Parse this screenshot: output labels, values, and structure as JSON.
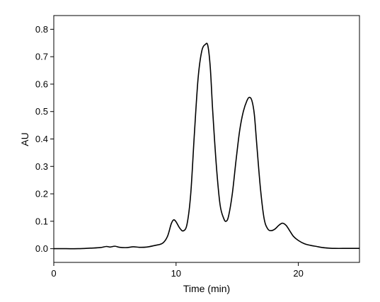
{
  "chart_data": {
    "type": "line",
    "title": "",
    "xlabel": "Time (min)",
    "ylabel": "AU",
    "xlim": [
      0,
      25
    ],
    "ylim": [
      -0.05,
      0.85
    ],
    "xticks": [
      0,
      10,
      20
    ],
    "xtick_labels": [
      "0",
      "10",
      "20"
    ],
    "yticks": [
      0.0,
      0.1,
      0.2,
      0.3,
      0.4,
      0.5,
      0.6,
      0.7,
      0.8
    ],
    "ytick_labels": [
      "0.0",
      "0.1",
      "0.2",
      "0.3",
      "0.4",
      "0.5",
      "0.6",
      "0.7",
      "0.8"
    ],
    "grid": false,
    "legend": "none",
    "series": [
      {
        "x": [
          0,
          1,
          2,
          3,
          3.8,
          4.3,
          4.6,
          5.0,
          5.4,
          6.0,
          6.5,
          7.0,
          7.6,
          8.3,
          8.9,
          9.3,
          9.6,
          9.8,
          10.0,
          10.3,
          10.6,
          10.9,
          11.2,
          11.5,
          11.8,
          12.1,
          12.4,
          12.6,
          12.8,
          13.0,
          13.3,
          13.6,
          13.9,
          14.1,
          14.3,
          14.6,
          14.9,
          15.2,
          15.5,
          15.8,
          16.0,
          16.2,
          16.4,
          16.6,
          16.9,
          17.2,
          17.5,
          17.8,
          18.1,
          18.4,
          18.7,
          19.0,
          19.3,
          19.6,
          20.0,
          20.5,
          21.0,
          21.5,
          22.0,
          22.5,
          23.0,
          24.0,
          25.0
        ],
        "y": [
          0.0,
          0.0,
          0.0,
          0.002,
          0.004,
          0.008,
          0.006,
          0.009,
          0.005,
          0.004,
          0.007,
          0.005,
          0.006,
          0.012,
          0.02,
          0.045,
          0.09,
          0.105,
          0.098,
          0.075,
          0.065,
          0.09,
          0.2,
          0.42,
          0.62,
          0.72,
          0.745,
          0.74,
          0.66,
          0.5,
          0.3,
          0.16,
          0.11,
          0.1,
          0.12,
          0.2,
          0.32,
          0.43,
          0.5,
          0.54,
          0.552,
          0.54,
          0.49,
          0.38,
          0.22,
          0.11,
          0.072,
          0.066,
          0.072,
          0.085,
          0.093,
          0.085,
          0.065,
          0.045,
          0.03,
          0.018,
          0.012,
          0.008,
          0.004,
          0.002,
          0.001,
          0.001,
          0.001
        ]
      }
    ]
  }
}
